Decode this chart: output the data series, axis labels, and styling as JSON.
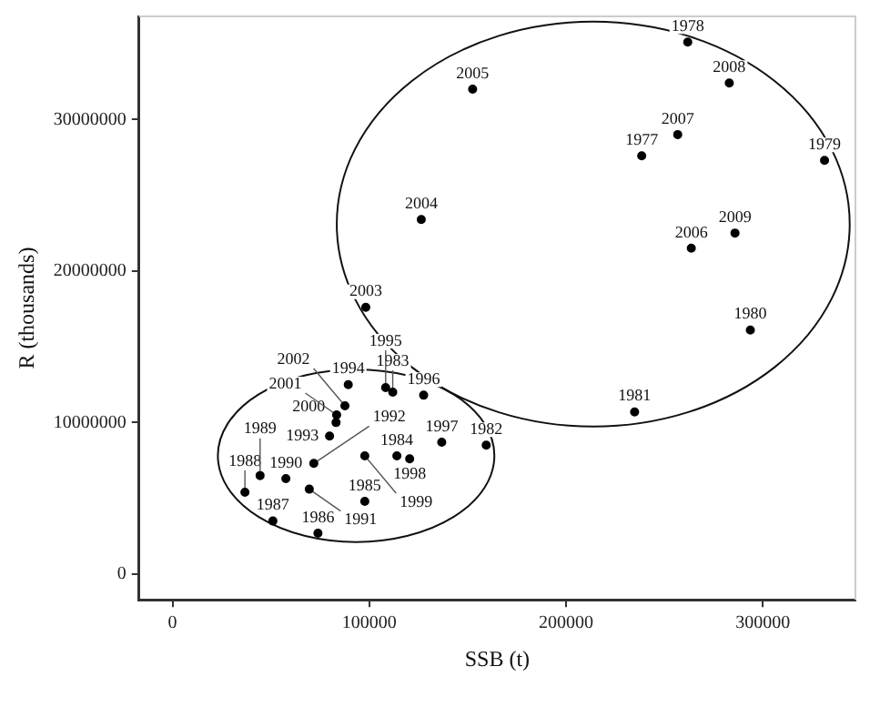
{
  "chart_data": {
    "type": "scatter",
    "xlabel": "SSB (t)",
    "ylabel": "R (thousands)",
    "x": [
      238400,
      261800,
      331300,
      293600,
      234800,
      159400,
      111900,
      114000,
      97700,
      73900,
      51000,
      36800,
      44500,
      57600,
      69500,
      71800,
      79800,
      89300,
      108300,
      127600,
      136800,
      120500,
      97700,
      83100,
      83400,
      87600,
      98200,
      126400,
      152500,
      263600,
      256700,
      282900,
      285800
    ],
    "series": [
      {
        "color": "#000000",
        "values": [
          27600000,
          35100000,
          27300000,
          16100000,
          10700000,
          8500000,
          12000000,
          7800000,
          4800000,
          2700000,
          3500000,
          5400000,
          6500000,
          6300000,
          5600000,
          7300000,
          9100000,
          12500000,
          12300000,
          11800000,
          8700000,
          7600000,
          7800000,
          10000000,
          10500000,
          11100000,
          17600000,
          23400000,
          32000000,
          21500000,
          29000000,
          32400000,
          22500000
        ]
      }
    ],
    "annotations": [
      {
        "text": "1977",
        "x": 238400,
        "y": 27600000
      },
      {
        "text": "1978",
        "x": 261800,
        "y": 35100000
      },
      {
        "text": "1979",
        "x": 331300,
        "y": 27300000
      },
      {
        "text": "1980",
        "x": 293600,
        "y": 16100000
      },
      {
        "text": "1981",
        "x": 234800,
        "y": 10700000
      },
      {
        "text": "1982",
        "x": 159400,
        "y": 8500000
      },
      {
        "text": "1983",
        "x": 111900,
        "y": 12000000
      },
      {
        "text": "1984",
        "x": 114000,
        "y": 7800000
      },
      {
        "text": "1985",
        "x": 97700,
        "y": 4800000
      },
      {
        "text": "1986",
        "x": 73900,
        "y": 2700000
      },
      {
        "text": "1987",
        "x": 51000,
        "y": 3500000
      },
      {
        "text": "1988",
        "x": 36800,
        "y": 5400000
      },
      {
        "text": "1989",
        "x": 44500,
        "y": 6500000
      },
      {
        "text": "1990",
        "x": 57600,
        "y": 6300000
      },
      {
        "text": "1991",
        "x": 69500,
        "y": 5600000
      },
      {
        "text": "1992",
        "x": 71800,
        "y": 7300000
      },
      {
        "text": "1993",
        "x": 79800,
        "y": 9100000
      },
      {
        "text": "1994",
        "x": 89300,
        "y": 12500000
      },
      {
        "text": "1995",
        "x": 108300,
        "y": 12300000
      },
      {
        "text": "1996",
        "x": 127600,
        "y": 11800000
      },
      {
        "text": "1997",
        "x": 136800,
        "y": 8700000
      },
      {
        "text": "1998",
        "x": 120500,
        "y": 7600000
      },
      {
        "text": "1999",
        "x": 97700,
        "y": 7800000
      },
      {
        "text": "2000",
        "x": 83100,
        "y": 10000000
      },
      {
        "text": "2001",
        "x": 83400,
        "y": 10500000
      },
      {
        "text": "2002",
        "x": 87600,
        "y": 11100000
      },
      {
        "text": "2003",
        "x": 98200,
        "y": 17600000
      },
      {
        "text": "2004",
        "x": 126400,
        "y": 23400000
      },
      {
        "text": "2005",
        "x": 152500,
        "y": 32000000
      },
      {
        "text": "2006",
        "x": 263600,
        "y": 21500000
      },
      {
        "text": "2007",
        "x": 256700,
        "y": 29000000
      },
      {
        "text": "2008",
        "x": 282900,
        "y": 32400000
      },
      {
        "text": "2009",
        "x": 285800,
        "y": 22500000
      }
    ],
    "xlim": [
      -17000,
      347000
    ],
    "xticks": [
      0,
      100000,
      200000,
      300000
    ],
    "ylim": [
      -1700000,
      36800000
    ],
    "yticks": [
      0,
      10000000,
      20000000,
      30000000
    ],
    "grid": false,
    "legend": false,
    "marker": "circle"
  }
}
